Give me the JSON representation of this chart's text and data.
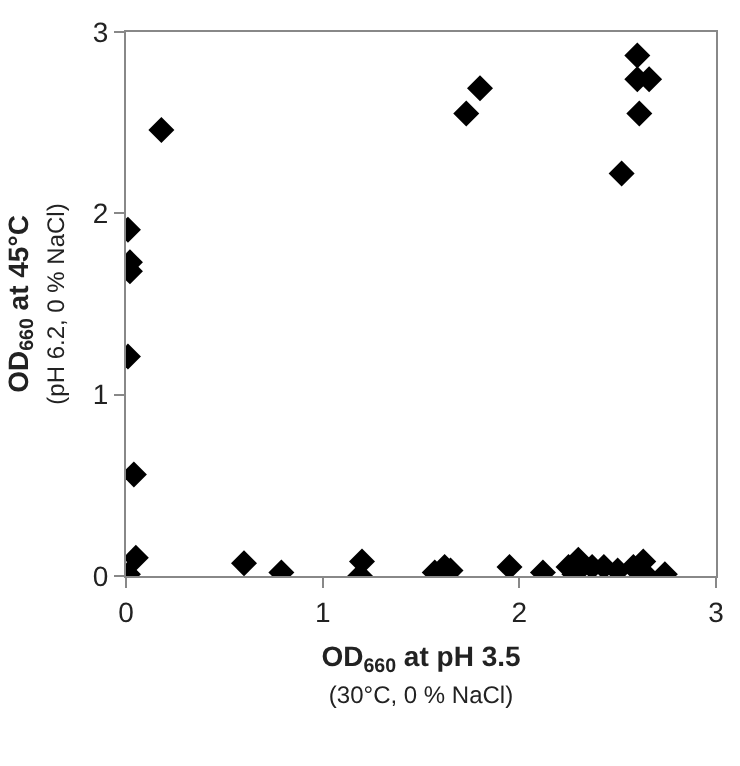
{
  "chart_data": {
    "type": "scatter",
    "xlabel": "OD$_{660}$ at pH 3.5\n(30°C, 0 % NaCl)",
    "ylabel": "OD$_{660}$ at 45°C\n(pH 6.2, 0 % NaCl)",
    "x": [
      0.01,
      0.02,
      0.02,
      0.01,
      0.04,
      0.18,
      0.05,
      0.01,
      1.73,
      1.8,
      2.52,
      2.6,
      2.6,
      2.66,
      2.61,
      0.6,
      0.79,
      1.2,
      1.19,
      1.57,
      1.62,
      1.65,
      1.95,
      2.12,
      2.25,
      2.3,
      2.28,
      2.37,
      2.43,
      2.5,
      2.58,
      2.63,
      2.64,
      2.74
    ],
    "series": [
      {
        "color": "#000000",
        "values": [
          1.91,
          1.73,
          1.68,
          1.21,
          0.56,
          2.46,
          0.1,
          0.01,
          2.55,
          2.69,
          2.22,
          2.87,
          2.74,
          2.74,
          2.55,
          0.07,
          0.02,
          0.08,
          0.0,
          0.02,
          0.05,
          0.03,
          0.05,
          0.02,
          0.05,
          0.09,
          0.01,
          0.05,
          0.05,
          0.03,
          0.05,
          0.08,
          0.01,
          0.01
        ]
      }
    ],
    "marker": "diamond",
    "xlim": [
      0,
      3
    ],
    "ylim": [
      0,
      3
    ],
    "xticks": [
      0,
      1,
      2,
      3
    ],
    "yticks": [
      0,
      1,
      2,
      3
    ],
    "grid": false
  }
}
